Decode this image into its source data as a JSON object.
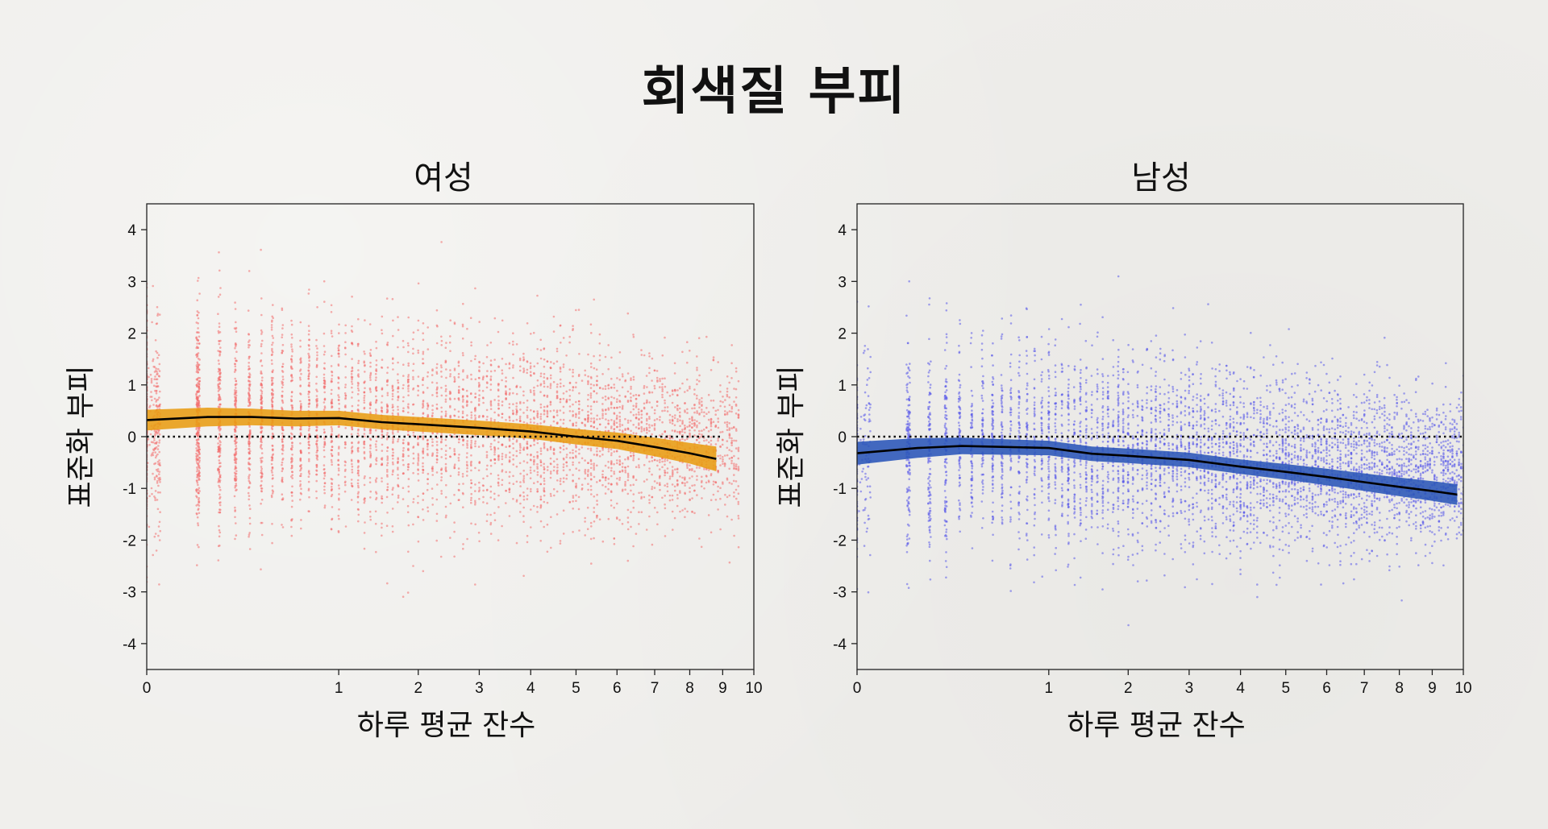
{
  "title": "회색질 부피",
  "colors": {
    "female_points": "#f26d6d",
    "female_band": "#e89c12",
    "male_points": "#5b5bea",
    "male_band": "#2a55b8",
    "trend_line": "#000000"
  },
  "chart_data": [
    {
      "type": "scatter",
      "title": "여성",
      "xlabel": "하루 평균 잔수",
      "ylabel": "표준화 부피",
      "x_scale": "sqrt",
      "xlim": [
        0,
        10
      ],
      "ylim": [
        -4.5,
        4.5
      ],
      "x_ticks": [
        "0",
        "1",
        "2",
        "3",
        "4",
        "5",
        "6",
        "7",
        "8",
        "9",
        "10"
      ],
      "y_ticks": [
        "4",
        "3",
        "2",
        "1",
        "0",
        "-1",
        "-2",
        "-3",
        "-4"
      ],
      "reference_line_y": 0,
      "series": [
        {
          "kind": "trend",
          "x": [
            0,
            0.1,
            0.3,
            0.6,
            1.0,
            1.5,
            2.0,
            3.0,
            4.0,
            5.0,
            6.0,
            7.0,
            8.0,
            8.8
          ],
          "y": [
            0.32,
            0.38,
            0.38,
            0.35,
            0.36,
            0.28,
            0.24,
            0.17,
            0.1,
            0.0,
            -0.08,
            -0.2,
            -0.32,
            -0.43
          ],
          "band_halfwidth": [
            0.2,
            0.18,
            0.16,
            0.15,
            0.14,
            0.14,
            0.14,
            0.14,
            0.14,
            0.15,
            0.16,
            0.18,
            0.2,
            0.24
          ]
        }
      ]
    },
    {
      "type": "scatter",
      "title": "남성",
      "xlabel": "하루 평균 잔수",
      "ylabel": "표준화 부피",
      "x_scale": "sqrt",
      "xlim": [
        0,
        10
      ],
      "ylim": [
        -4.5,
        4.5
      ],
      "x_ticks": [
        "0",
        "1",
        "2",
        "3",
        "4",
        "5",
        "6",
        "7",
        "8",
        "9",
        "10"
      ],
      "y_ticks": [
        "4",
        "3",
        "2",
        "1",
        "0",
        "-1",
        "-2",
        "-3",
        "-4"
      ],
      "reference_line_y": 0,
      "series": [
        {
          "kind": "trend",
          "x": [
            0,
            0.1,
            0.3,
            0.6,
            1.0,
            1.5,
            2.0,
            3.0,
            4.0,
            5.0,
            6.0,
            7.0,
            8.0,
            9.0,
            9.8
          ],
          "y": [
            -0.32,
            -0.22,
            -0.18,
            -0.2,
            -0.22,
            -0.33,
            -0.37,
            -0.45,
            -0.58,
            -0.68,
            -0.78,
            -0.88,
            -0.97,
            -1.05,
            -1.12
          ],
          "band_halfwidth": [
            0.22,
            0.19,
            0.16,
            0.15,
            0.14,
            0.14,
            0.14,
            0.14,
            0.14,
            0.15,
            0.16,
            0.17,
            0.18,
            0.19,
            0.2
          ]
        }
      ]
    }
  ]
}
